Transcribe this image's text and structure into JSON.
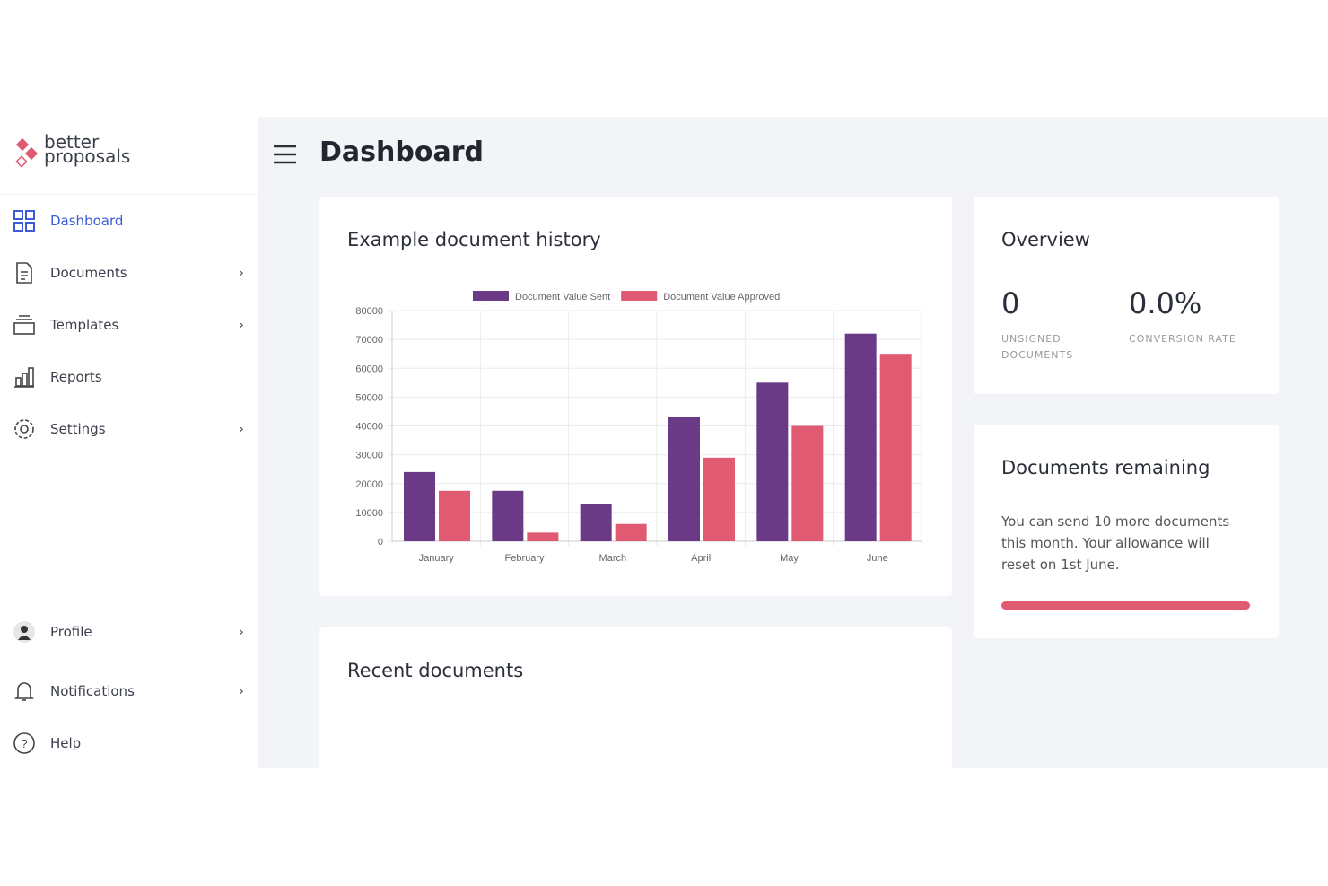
{
  "sidebar": {
    "logo": [
      "better",
      "proposals"
    ],
    "nav": [
      "Dashboard",
      "Documents",
      "Templates",
      "Reports",
      "Settings"
    ],
    "bottom_nav": [
      "Profile",
      "Notifications",
      "Help"
    ]
  },
  "header": {
    "title": "Dashboard"
  },
  "chart_data": {
    "type": "bar",
    "title": "Example document history",
    "categories": [
      "January",
      "February",
      "March",
      "April",
      "May",
      "June"
    ],
    "series": [
      {
        "name": "Document Value Sent",
        "color": "#6a3a86",
        "values": [
          24000,
          17500,
          12800,
          43000,
          55000,
          72000
        ]
      },
      {
        "name": "Document Value Approved",
        "color": "#e05a72",
        "values": [
          17500,
          3000,
          6000,
          29000,
          40000,
          65000
        ]
      }
    ],
    "ylim": [
      0,
      80000
    ],
    "yticks": [
      0,
      10000,
      20000,
      30000,
      40000,
      50000,
      60000,
      70000,
      80000
    ],
    "grid": true
  },
  "overview": {
    "title": "Overview",
    "stats": [
      {
        "value": "0",
        "label": [
          "UNSIGNED",
          "DOCUMENTS"
        ]
      },
      {
        "value": "0.0%",
        "label": [
          "CONVERSION RATE"
        ]
      }
    ]
  },
  "remaining": {
    "title": "Documents remaining",
    "text": [
      "You can send 10 more documents",
      "this month. Your allowance will",
      "reset on 1st June."
    ]
  },
  "recent": {
    "title": "Recent documents"
  }
}
